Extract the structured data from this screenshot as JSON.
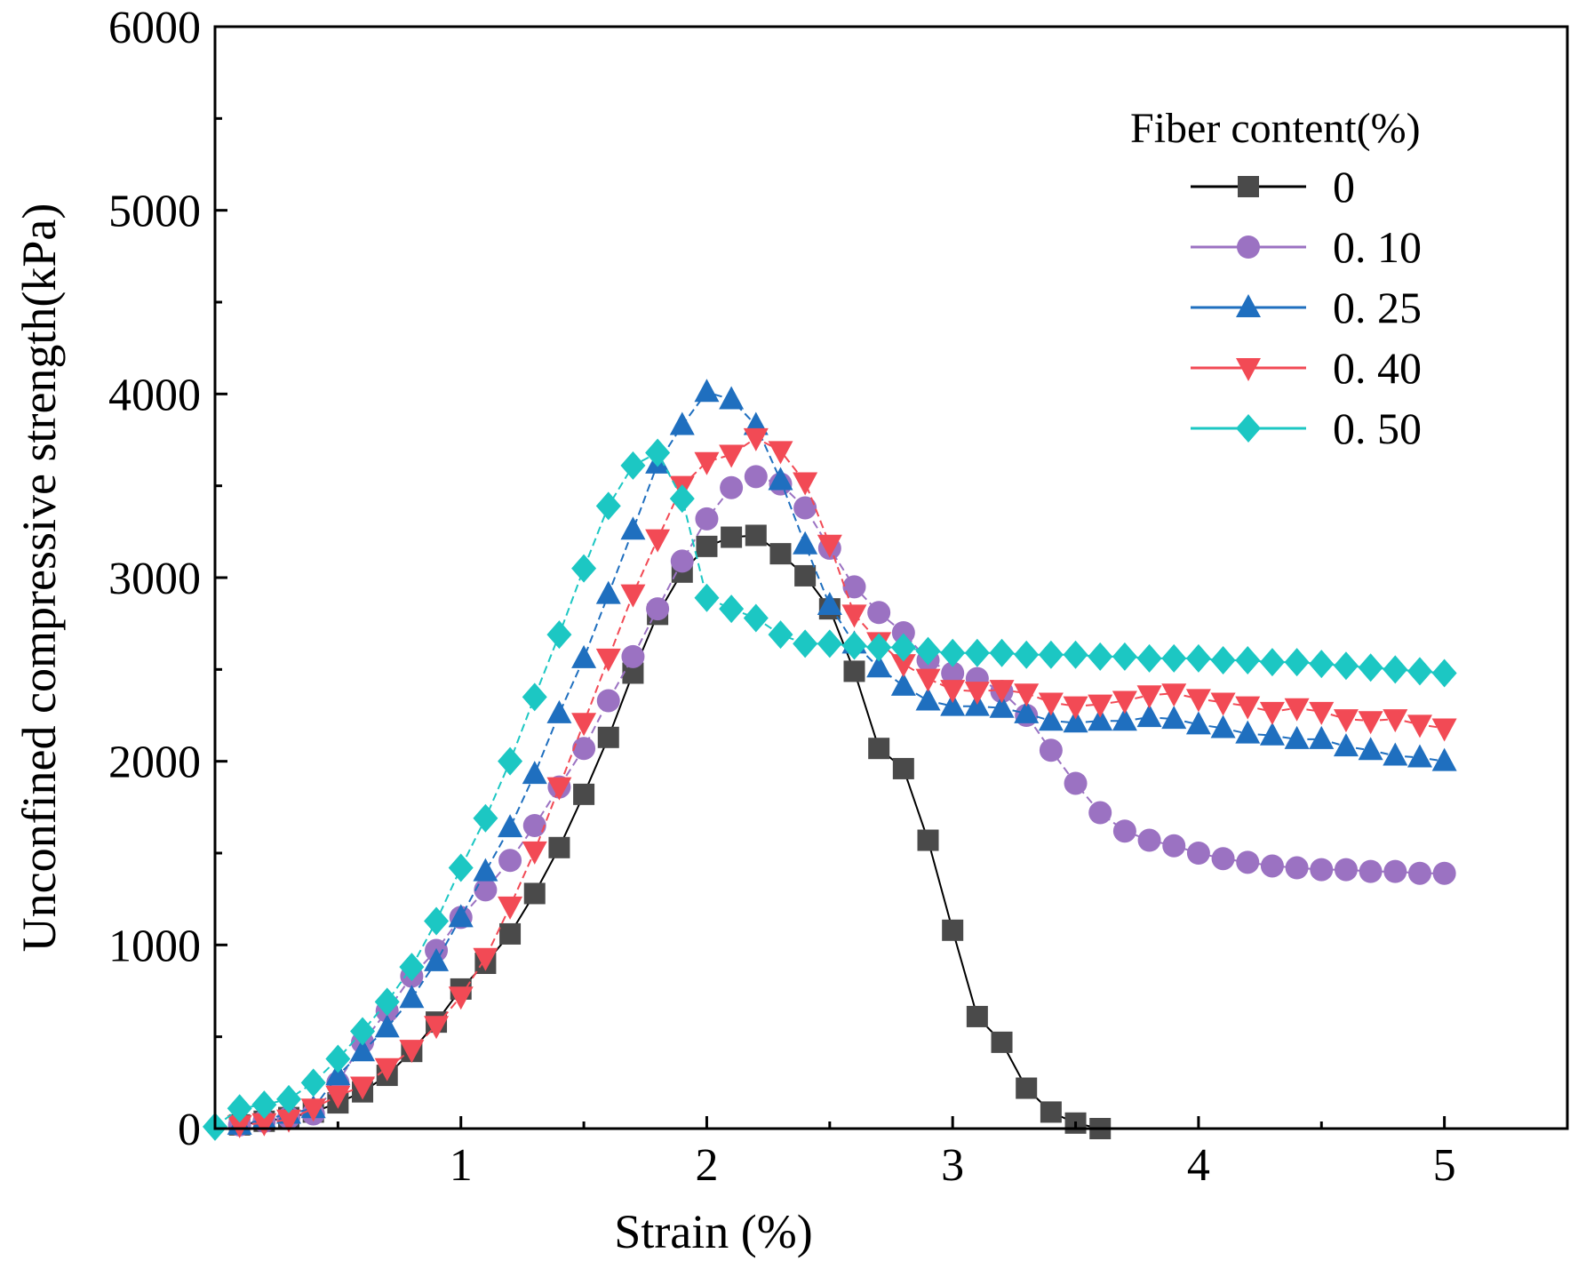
{
  "chart_data": {
    "type": "line",
    "title": "",
    "xlabel": "Strain (%)",
    "ylabel": "Unconfined compressive strength(kPa)",
    "xlim": [
      0,
      5.5
    ],
    "ylim": [
      0,
      6000
    ],
    "xticks": [
      1,
      2,
      3,
      4,
      5
    ],
    "yticks": [
      0,
      1000,
      2000,
      3000,
      4000,
      5000,
      6000
    ],
    "grid": false,
    "legend_title": "Fiber content(%)",
    "legend_position": "top-right",
    "series": [
      {
        "name": "0",
        "marker": "square",
        "color": "#4a4a4a",
        "line_color": "#000000",
        "x": [
          0.1,
          0.2,
          0.3,
          0.4,
          0.5,
          0.6,
          0.7,
          0.8,
          0.9,
          1.0,
          1.1,
          1.2,
          1.3,
          1.4,
          1.5,
          1.6,
          1.7,
          1.8,
          1.9,
          2.0,
          2.1,
          2.2,
          2.3,
          2.4,
          2.5,
          2.6,
          2.7,
          2.8,
          2.9,
          3.0,
          3.1,
          3.2,
          3.3,
          3.4,
          3.5,
          3.6
        ],
        "y": [
          20,
          40,
          60,
          90,
          140,
          200,
          290,
          420,
          580,
          760,
          900,
          1060,
          1280,
          1530,
          1820,
          2130,
          2480,
          2800,
          3030,
          3170,
          3220,
          3230,
          3130,
          3010,
          2830,
          2490,
          2070,
          1960,
          1570,
          1080,
          610,
          470,
          220,
          90,
          30,
          0
        ]
      },
      {
        "name": "0. 10",
        "marker": "circle",
        "color": "#9b72c2",
        "line_color": "#9b72c2",
        "x": [
          0.1,
          0.2,
          0.3,
          0.4,
          0.5,
          0.6,
          0.7,
          0.8,
          0.9,
          1.0,
          1.1,
          1.2,
          1.3,
          1.4,
          1.5,
          1.6,
          1.7,
          1.8,
          1.9,
          2.0,
          2.1,
          2.2,
          2.3,
          2.4,
          2.5,
          2.6,
          2.7,
          2.8,
          2.9,
          3.0,
          3.1,
          3.2,
          3.3,
          3.4,
          3.5,
          3.6,
          3.7,
          3.8,
          3.9,
          4.0,
          4.1,
          4.2,
          4.3,
          4.4,
          4.5,
          4.6,
          4.7,
          4.8,
          4.9,
          5.0
        ],
        "y": [
          20,
          40,
          60,
          80,
          250,
          470,
          640,
          830,
          970,
          1150,
          1300,
          1460,
          1650,
          1860,
          2070,
          2330,
          2570,
          2830,
          3090,
          3320,
          3490,
          3550,
          3510,
          3380,
          3160,
          2950,
          2810,
          2700,
          2550,
          2480,
          2450,
          2380,
          2250,
          2060,
          1880,
          1720,
          1620,
          1570,
          1540,
          1500,
          1470,
          1450,
          1430,
          1420,
          1410,
          1410,
          1400,
          1400,
          1390,
          1390
        ]
      },
      {
        "name": "0. 25",
        "marker": "triangle-up",
        "color": "#1f6fbf",
        "line_color": "#1f6fbf",
        "x": [
          0.1,
          0.2,
          0.3,
          0.4,
          0.5,
          0.6,
          0.7,
          0.8,
          0.9,
          1.0,
          1.1,
          1.2,
          1.3,
          1.4,
          1.5,
          1.6,
          1.7,
          1.8,
          1.9,
          2.0,
          2.1,
          2.2,
          2.3,
          2.4,
          2.5,
          2.6,
          2.7,
          2.8,
          2.9,
          3.0,
          3.1,
          3.2,
          3.3,
          3.4,
          3.5,
          3.6,
          3.7,
          3.8,
          3.9,
          4.0,
          4.1,
          4.2,
          4.3,
          4.4,
          4.5,
          4.6,
          4.7,
          4.8,
          4.9,
          5.0
        ],
        "y": [
          20,
          50,
          80,
          110,
          290,
          420,
          550,
          710,
          910,
          1150,
          1400,
          1640,
          1930,
          2260,
          2560,
          2910,
          3260,
          3620,
          3830,
          4010,
          3970,
          3830,
          3530,
          3180,
          2850,
          2640,
          2510,
          2410,
          2330,
          2300,
          2300,
          2290,
          2260,
          2220,
          2210,
          2220,
          2220,
          2240,
          2230,
          2200,
          2180,
          2150,
          2140,
          2120,
          2120,
          2080,
          2060,
          2030,
          2020,
          2000
        ]
      },
      {
        "name": "0. 40",
        "marker": "triangle-down",
        "color": "#f24a55",
        "line_color": "#f24a55",
        "x": [
          0.1,
          0.2,
          0.3,
          0.4,
          0.5,
          0.6,
          0.7,
          0.8,
          0.9,
          1.0,
          1.1,
          1.2,
          1.3,
          1.4,
          1.5,
          1.6,
          1.7,
          1.8,
          1.9,
          2.0,
          2.1,
          2.2,
          2.3,
          2.4,
          2.5,
          2.6,
          2.7,
          2.8,
          2.9,
          3.0,
          3.1,
          3.2,
          3.3,
          3.4,
          3.5,
          3.6,
          3.7,
          3.8,
          3.9,
          4.0,
          4.1,
          4.2,
          4.3,
          4.4,
          4.5,
          4.6,
          4.7,
          4.8,
          4.9,
          5.0
        ],
        "y": [
          20,
          30,
          50,
          110,
          180,
          230,
          330,
          430,
          560,
          720,
          930,
          1210,
          1510,
          1860,
          2210,
          2560,
          2910,
          3210,
          3500,
          3630,
          3670,
          3760,
          3690,
          3520,
          3180,
          2800,
          2650,
          2530,
          2450,
          2390,
          2380,
          2390,
          2370,
          2320,
          2300,
          2310,
          2330,
          2360,
          2370,
          2340,
          2320,
          2300,
          2270,
          2290,
          2270,
          2230,
          2220,
          2230,
          2200,
          2180
        ]
      },
      {
        "name": "0. 50",
        "marker": "diamond",
        "color": "#1cc7c3",
        "line_color": "#1cc7c3",
        "x": [
          0.0,
          0.1,
          0.2,
          0.3,
          0.4,
          0.5,
          0.6,
          0.7,
          0.8,
          0.9,
          1.0,
          1.1,
          1.2,
          1.3,
          1.4,
          1.5,
          1.6,
          1.7,
          1.8,
          1.9,
          2.0,
          2.1,
          2.2,
          2.3,
          2.4,
          2.5,
          2.6,
          2.7,
          2.8,
          2.9,
          3.0,
          3.1,
          3.2,
          3.3,
          3.4,
          3.5,
          3.6,
          3.7,
          3.8,
          3.9,
          4.0,
          4.1,
          4.2,
          4.3,
          4.4,
          4.5,
          4.6,
          4.7,
          4.8,
          4.9,
          5.0
        ],
        "y": [
          10,
          110,
          130,
          160,
          250,
          380,
          530,
          690,
          880,
          1130,
          1420,
          1690,
          2000,
          2350,
          2690,
          3050,
          3390,
          3610,
          3680,
          3430,
          2890,
          2830,
          2780,
          2690,
          2640,
          2640,
          2630,
          2620,
          2620,
          2600,
          2590,
          2590,
          2590,
          2580,
          2580,
          2580,
          2570,
          2570,
          2560,
          2560,
          2560,
          2550,
          2550,
          2540,
          2540,
          2530,
          2520,
          2510,
          2500,
          2490,
          2480
        ]
      }
    ]
  }
}
